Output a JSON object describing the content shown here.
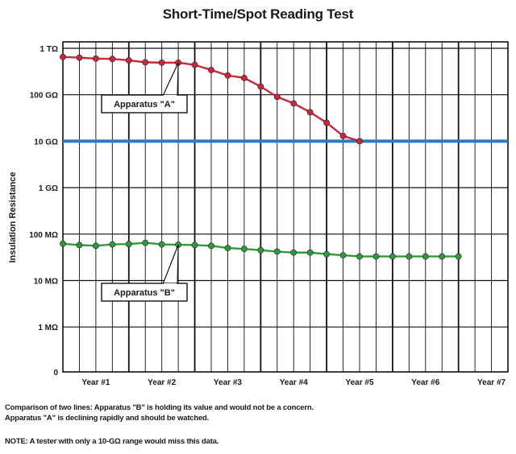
{
  "chart_data": {
    "type": "line",
    "title": "Short-Time/Spot Reading Test",
    "ylabel": "Insulation Resistance",
    "xlabel": "",
    "y_scale": "log",
    "y_tick_labels": [
      "0",
      "1 MΩ",
      "10 MΩ",
      "100 MΩ",
      "1 GΩ",
      "10 GΩ",
      "100 GΩ",
      "1 TΩ"
    ],
    "x_tick_labels": [
      "Year #1",
      "Year #2",
      "Year #3",
      "Year #4",
      "Year #5",
      "Year #6",
      "Year #7"
    ],
    "x_range": [
      0,
      27
    ],
    "grid": true,
    "series": [
      {
        "name": "Apparatus \"A\"",
        "color": "#c8283c",
        "x": [
          0,
          1,
          2,
          3,
          4,
          5,
          6,
          7,
          8,
          9,
          10,
          11,
          12,
          13,
          14,
          15,
          16,
          17,
          18
        ],
        "y_ohm": [
          650000000000.0,
          630000000000.0,
          600000000000.0,
          590000000000.0,
          550000000000.0,
          500000000000.0,
          490000000000.0,
          490000000000.0,
          440000000000.0,
          340000000000.0,
          260000000000.0,
          230000000000.0,
          150000000000.0,
          90000000000.0,
          65000000000.0,
          42000000000.0,
          25000000000.0,
          13000000000.0,
          10000000000.0
        ]
      },
      {
        "name": "Apparatus \"B\"",
        "color": "#2e9a3c",
        "x": [
          0,
          1,
          2,
          3,
          4,
          5,
          6,
          7,
          8,
          9,
          10,
          11,
          12,
          13,
          14,
          15,
          16,
          17,
          18,
          19,
          20,
          21,
          22,
          23,
          24
        ],
        "y_ohm": [
          62000000.0,
          58000000.0,
          56000000.0,
          60000000.0,
          61000000.0,
          65000000.0,
          60000000.0,
          59000000.0,
          58000000.0,
          56000000.0,
          50000000.0,
          48000000.0,
          45000000.0,
          42000000.0,
          40000000.0,
          40000000.0,
          37000000.0,
          35000000.0,
          33000000.0,
          33000000.0,
          33000000.0,
          33000000.0,
          33000000.0,
          33000000.0,
          33000000.0
        ]
      }
    ],
    "reference_line": {
      "y_ohm": 10000000000.0,
      "color": "#2c79c4"
    },
    "annotations": [
      "Apparatus \"A\"",
      "Apparatus \"B\""
    ]
  },
  "notes": [
    "Comparison of two lines: Apparatus \"B\" is holding its value and would not be a concern.",
    "Apparatus \"A\" is declining rapidly and should be watched.",
    "NOTE: A tester with only a 10-GΩ range would miss this data."
  ]
}
